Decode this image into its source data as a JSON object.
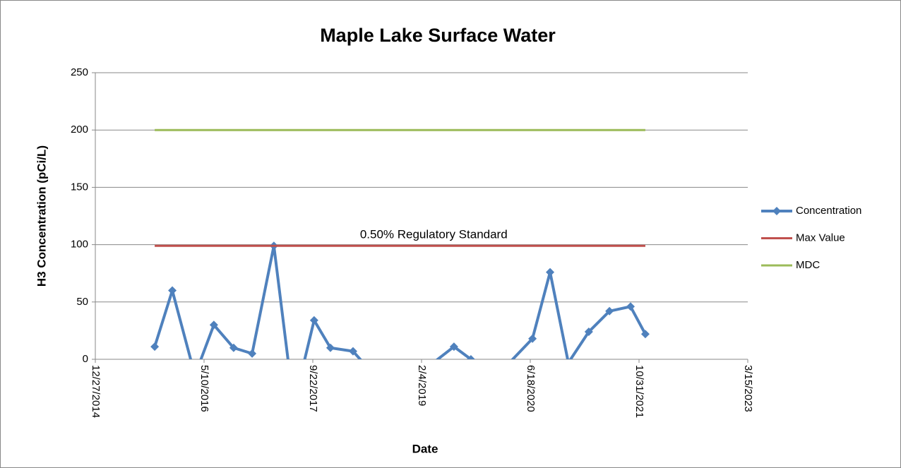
{
  "chart_data": {
    "type": "line",
    "title": "Maple Lake Surface Water",
    "xlabel": "Date",
    "ylabel": "H3 Concentration (pCi/L)",
    "annotations": [
      {
        "text": "0.50% Regulatory Standard",
        "x": "4/1/2019",
        "y": 99
      }
    ],
    "xlim": [
      "12/27/2014",
      "3/15/2023"
    ],
    "xticks": [
      "12/27/2014",
      "5/10/2016",
      "9/22/2017",
      "2/4/2019",
      "6/18/2020",
      "10/31/2021",
      "3/15/2023"
    ],
    "ylim": [
      0,
      250
    ],
    "yticks": [
      0,
      50,
      100,
      150,
      200,
      250
    ],
    "grid": true,
    "legend": "right",
    "series": [
      {
        "name": "Concentration",
        "color": "#4f81bd",
        "markers": true,
        "x": [
          "9/26/2015",
          "12/16/2015",
          "3/29/2016",
          "6/24/2016",
          "9/23/2016",
          "12/17/2016",
          "3/27/2017",
          "6/26/2017",
          "9/28/2017",
          "12/12/2017",
          "3/26/2018",
          "9/21/2018",
          "7/3/2019",
          "9/19/2019",
          "12/19/2019",
          "6/28/2020",
          "9/17/2020",
          "12/10/2020",
          "3/14/2021",
          "6/17/2021",
          "9/22/2021",
          "11/29/2021"
        ],
        "values": [
          11,
          60,
          -14,
          30,
          10,
          5,
          99,
          -40,
          34,
          10,
          7,
          -31,
          11,
          0,
          -20,
          18,
          76,
          -3,
          24,
          42,
          46,
          22
        ]
      },
      {
        "name": "Max Value",
        "color": "#c0504d",
        "markers": false,
        "x": [
          "9/26/2015",
          "11/29/2021"
        ],
        "values": [
          99,
          99
        ]
      },
      {
        "name": "MDC",
        "color": "#9bbb59",
        "markers": false,
        "x": [
          "9/26/2015",
          "11/29/2021"
        ],
        "values": [
          200,
          200
        ]
      }
    ]
  }
}
